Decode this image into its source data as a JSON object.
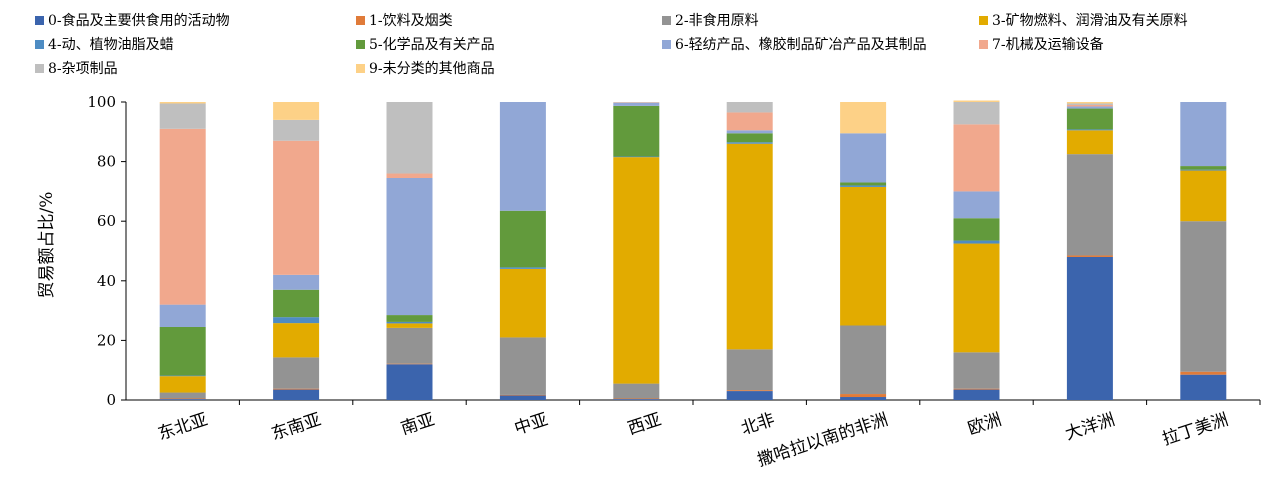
{
  "chart_data": {
    "type": "bar",
    "stacked": true,
    "ylabel": "贸易额占比/%",
    "ylim": [
      0,
      100
    ],
    "yticks": [
      "0",
      "20",
      "40",
      "60",
      "80",
      "100"
    ],
    "legend_position": "top",
    "categories": [
      "东北亚",
      "东南亚",
      "南亚",
      "中亚",
      "西亚",
      "北非",
      "撒哈拉以南的非洲",
      "欧洲",
      "大洋洲",
      "拉丁美洲"
    ],
    "series": [
      {
        "name": "0-食品及主要供食用的活动物",
        "color": "#3b64ad",
        "values": [
          0.3,
          3.5,
          12,
          1.5,
          0.3,
          3,
          1,
          3.5,
          48,
          8.5
        ]
      },
      {
        "name": "1-饮料及烟类",
        "color": "#e07b39",
        "values": [
          0.2,
          0.3,
          0.2,
          0.2,
          0.2,
          0.3,
          1,
          0.3,
          0.5,
          1
        ]
      },
      {
        "name": "2-非食用原料",
        "color": "#939393",
        "values": [
          2,
          10.5,
          12,
          19.3,
          5,
          13.7,
          23,
          12.2,
          34,
          50.5
        ]
      },
      {
        "name": "3-矿物燃料、润滑油及有关原料",
        "color": "#e2ab00",
        "values": [
          5.5,
          11.5,
          1.5,
          23,
          76,
          69,
          46.5,
          36.5,
          8,
          17
        ]
      },
      {
        "name": "4-动、植物油脂及蜡",
        "color": "#4e8cc3",
        "values": [
          0.2,
          2,
          0.5,
          0.5,
          0.2,
          0.5,
          0.5,
          1,
          0.3,
          0.3
        ]
      },
      {
        "name": "5-化学品及有关产品",
        "color": "#629a3c",
        "values": [
          16.3,
          9.2,
          2.3,
          19,
          17,
          3,
          1,
          7.5,
          7,
          1.2
        ]
      },
      {
        "name": "6-轻纺产品、橡胶制品矿冶产品及其制品",
        "color": "#91a7d6",
        "values": [
          7.5,
          5,
          46,
          36.5,
          1,
          1,
          16.5,
          9,
          0.7,
          21.5
        ]
      },
      {
        "name": "7-机械及运输设备",
        "color": "#f1a88d",
        "values": [
          59,
          45,
          1.5,
          0,
          0.1,
          6,
          0,
          22.5,
          0.5,
          0
        ]
      },
      {
        "name": "8-杂项制品",
        "color": "#bfbfbf",
        "values": [
          8.5,
          7,
          24,
          0,
          0.2,
          3.5,
          0,
          7.5,
          0.5,
          0
        ]
      },
      {
        "name": "9-未分类的其他商品",
        "color": "#fdd187",
        "values": [
          0.5,
          6,
          0,
          0,
          0,
          0,
          10.5,
          0.5,
          0.5,
          0
        ]
      }
    ]
  }
}
